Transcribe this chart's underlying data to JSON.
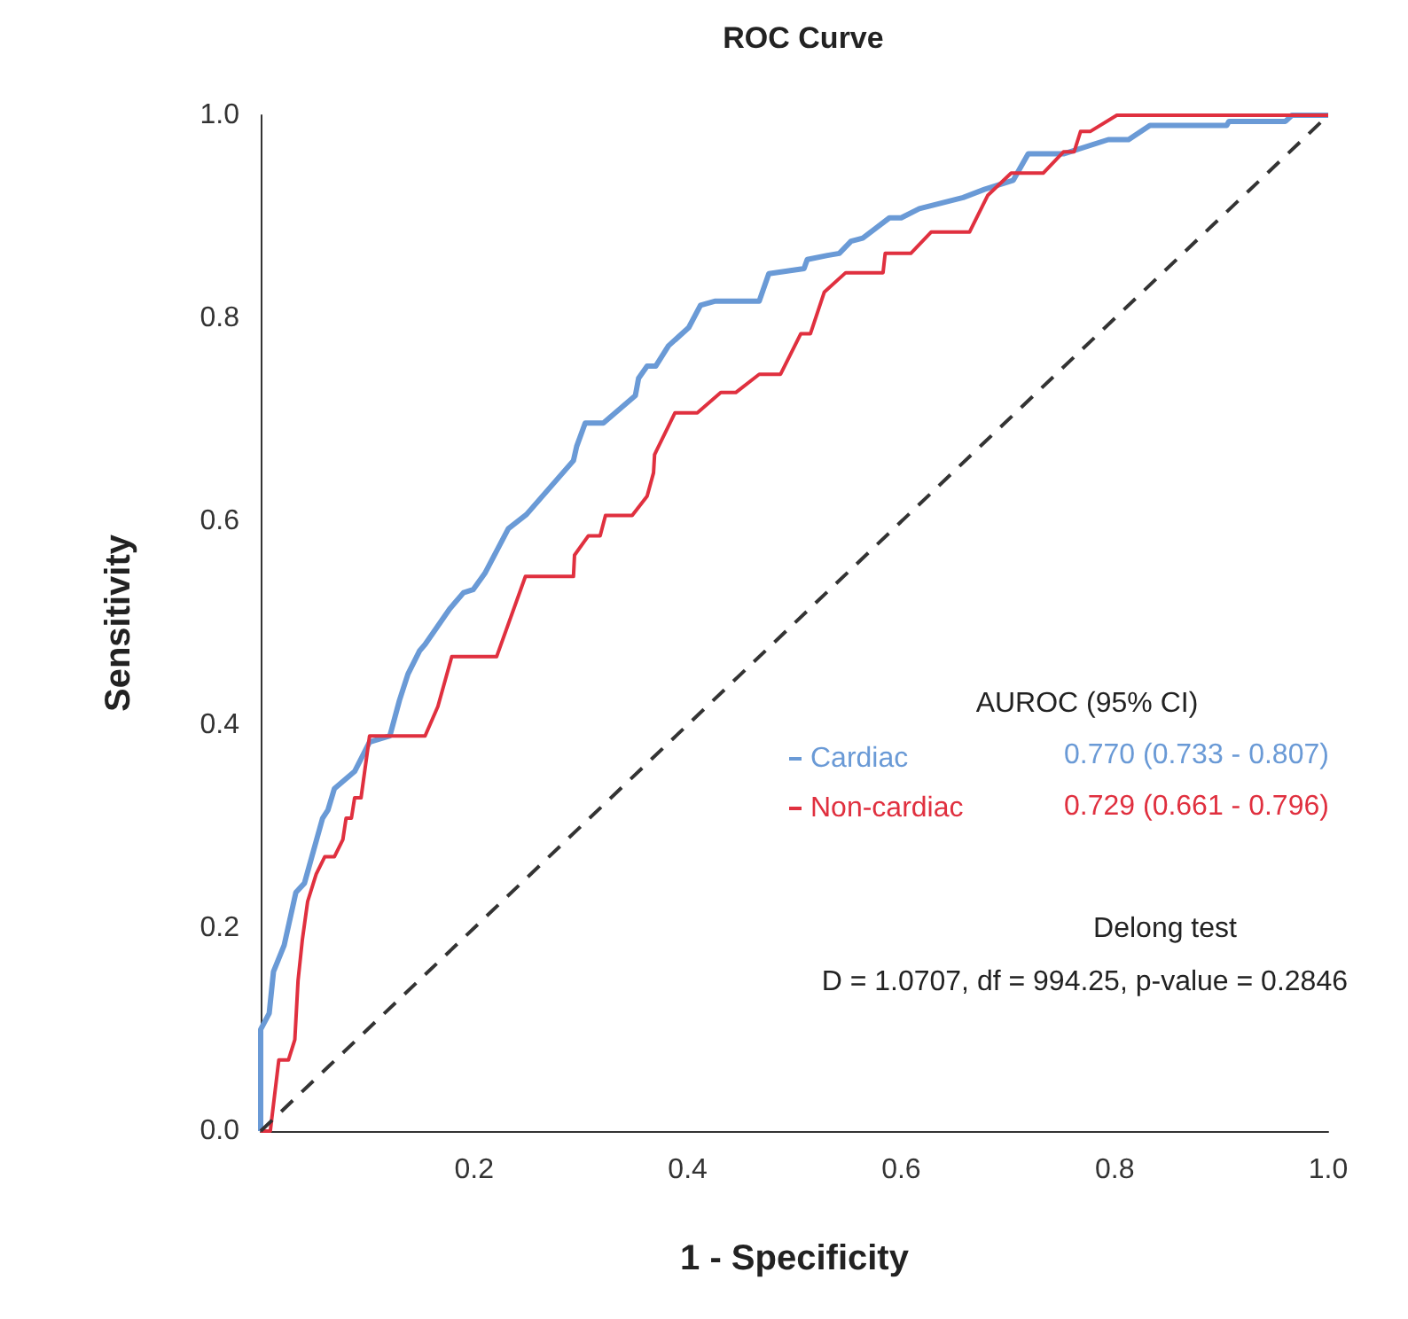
{
  "chart_data": {
    "type": "line",
    "title": "ROC Curve",
    "xlabel": "1 - Specificity",
    "ylabel": "Sensitivity",
    "xlim": [
      0,
      1
    ],
    "ylim": [
      0,
      1
    ],
    "xticks": [
      {
        "value": 0.2,
        "label": "0.2"
      },
      {
        "value": 0.4,
        "label": "0.4"
      },
      {
        "value": 0.6,
        "label": "0.6"
      },
      {
        "value": 0.8,
        "label": "0.8"
      },
      {
        "value": 1,
        "label": "1.0"
      }
    ],
    "yticks": [
      {
        "value": 0,
        "label": "0.0"
      },
      {
        "value": 0.2,
        "label": "0.2"
      },
      {
        "value": 0.4,
        "label": "0.4"
      },
      {
        "value": 0.6,
        "label": "0.6"
      },
      {
        "value": 0.8,
        "label": "0.8"
      },
      {
        "value": 1,
        "label": "1.0"
      }
    ],
    "grid": false,
    "legend": "center",
    "marker": "none",
    "series": [
      {
        "name": "Cardiac",
        "color": "#6a9ad6",
        "line_style": "solid",
        "x": [
          0,
          0,
          0.008,
          0.012,
          0.022,
          0.033,
          0.041,
          0.058,
          0.063,
          0.069,
          0.088,
          0.102,
          0.121,
          0.13,
          0.138,
          0.149,
          0.154,
          0.177,
          0.19,
          0.199,
          0.21,
          0.232,
          0.249,
          0.293,
          0.296,
          0.304,
          0.321,
          0.351,
          0.354,
          0.362,
          0.37,
          0.382,
          0.401,
          0.412,
          0.426,
          0.467,
          0.476,
          0.509,
          0.512,
          0.531,
          0.542,
          0.553,
          0.564,
          0.589,
          0.6,
          0.617,
          0.658,
          0.678,
          0.705,
          0.719,
          0.752,
          0.794,
          0.813,
          0.833,
          0.905,
          0.907,
          0.96,
          0.966,
          1
        ],
        "values": [
          0,
          0.1,
          0.116,
          0.157,
          0.183,
          0.235,
          0.244,
          0.308,
          0.316,
          0.337,
          0.354,
          0.383,
          0.389,
          0.424,
          0.45,
          0.473,
          0.479,
          0.514,
          0.53,
          0.533,
          0.549,
          0.593,
          0.607,
          0.66,
          0.674,
          0.697,
          0.697,
          0.724,
          0.741,
          0.753,
          0.753,
          0.773,
          0.791,
          0.813,
          0.817,
          0.817,
          0.844,
          0.849,
          0.858,
          0.862,
          0.864,
          0.876,
          0.879,
          0.899,
          0.899,
          0.908,
          0.919,
          0.927,
          0.936,
          0.962,
          0.962,
          0.976,
          0.976,
          0.99,
          0.99,
          0.994,
          0.994,
          1,
          1
        ]
      },
      {
        "name": "Non-cardiac",
        "color": "#e0303f",
        "line_style": "solid",
        "x": [
          0,
          0.009,
          0.017,
          0.026,
          0.032,
          0.035,
          0.039,
          0.044,
          0.052,
          0.06,
          0.069,
          0.077,
          0.08,
          0.085,
          0.088,
          0.094,
          0.102,
          0.154,
          0.166,
          0.179,
          0.221,
          0.248,
          0.293,
          0.294,
          0.307,
          0.318,
          0.323,
          0.348,
          0.362,
          0.368,
          0.369,
          0.388,
          0.409,
          0.431,
          0.445,
          0.467,
          0.487,
          0.506,
          0.515,
          0.528,
          0.548,
          0.583,
          0.585,
          0.609,
          0.628,
          0.664,
          0.681,
          0.703,
          0.733,
          0.752,
          0.762,
          0.768,
          0.777,
          0.802,
          1
        ],
        "values": [
          0,
          0,
          0.07,
          0.07,
          0.09,
          0.148,
          0.188,
          0.226,
          0.253,
          0.27,
          0.27,
          0.287,
          0.308,
          0.308,
          0.328,
          0.328,
          0.389,
          0.389,
          0.418,
          0.467,
          0.467,
          0.546,
          0.546,
          0.567,
          0.586,
          0.586,
          0.606,
          0.606,
          0.625,
          0.648,
          0.666,
          0.707,
          0.707,
          0.727,
          0.727,
          0.745,
          0.745,
          0.785,
          0.785,
          0.826,
          0.845,
          0.845,
          0.864,
          0.864,
          0.885,
          0.885,
          0.921,
          0.943,
          0.943,
          0.964,
          0.964,
          0.984,
          0.984,
          1,
          1
        ]
      },
      {
        "color": "#333333",
        "line_style": "dashed",
        "x": [
          0,
          1
        ],
        "values": [
          0,
          1
        ]
      }
    ],
    "annotations": [
      "AUROC (95% CI)",
      "0.770 (0.733 - 0.807)",
      "0.729 (0.661 - 0.796)",
      "Delong test",
      "D = 1.0707, df = 994.25, p-value = 0.2846"
    ]
  }
}
